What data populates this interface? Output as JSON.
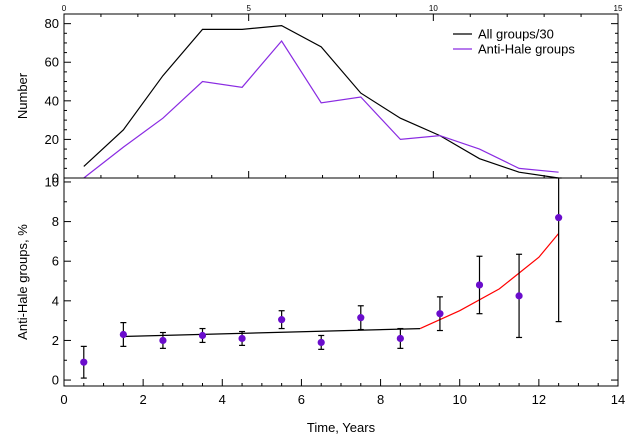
{
  "chart_data": [
    {
      "type": "line",
      "panel": "top",
      "title": "",
      "xlabel": "",
      "ylabel": "Number",
      "xlim": [
        0,
        15
      ],
      "ylim": [
        0,
        85
      ],
      "top_axis_ticks": [
        0,
        5,
        10,
        15
      ],
      "y_ticks": [
        0,
        20,
        40,
        60,
        80
      ],
      "grid": false,
      "legend_position": "top-right",
      "series": [
        {
          "name": "All groups/30",
          "color": "#000000",
          "x": [
            0.5,
            1.5,
            2.5,
            3.5,
            4.5,
            5.5,
            6.5,
            7.5,
            8.5,
            9.5,
            10.5,
            11.5,
            12.5
          ],
          "y": [
            6,
            25,
            53,
            77,
            77,
            79,
            68,
            44,
            31,
            22,
            10,
            3,
            0
          ]
        },
        {
          "name": "Anti-Hale groups",
          "color": "#8a2be2",
          "x": [
            0.5,
            1.5,
            2.5,
            3.5,
            4.5,
            5.5,
            6.5,
            7.5,
            8.5,
            9.5,
            10.5,
            11.5,
            12.5
          ],
          "y": [
            0,
            16,
            31,
            50,
            47,
            71,
            39,
            42,
            20,
            22,
            15,
            5,
            3
          ]
        }
      ]
    },
    {
      "type": "scatter",
      "panel": "bottom",
      "title": "",
      "xlabel": "Time, Years",
      "ylabel": "Anti-Hale groups, %",
      "xlim": [
        0,
        14
      ],
      "ylim": [
        -0.3,
        10.2
      ],
      "x_ticks": [
        0,
        2,
        4,
        6,
        8,
        10,
        12,
        14
      ],
      "y_ticks": [
        0,
        2,
        4,
        6,
        8,
        10
      ],
      "grid": false,
      "points": {
        "color": "#6a0dcc",
        "x": [
          0.5,
          1.5,
          2.5,
          3.5,
          4.5,
          5.5,
          6.5,
          7.5,
          8.5,
          9.5,
          10.5,
          11.5,
          12.5
        ],
        "y": [
          0.9,
          2.3,
          2.0,
          2.25,
          2.1,
          3.05,
          1.9,
          3.15,
          2.1,
          3.35,
          4.8,
          4.25,
          8.2
        ],
        "err": [
          0.8,
          0.6,
          0.4,
          0.35,
          0.35,
          0.45,
          0.35,
          0.6,
          0.5,
          0.85,
          1.45,
          2.1,
          5.25
        ]
      },
      "fits": [
        {
          "color": "#000000",
          "x": [
            1.5,
            9.0
          ],
          "y": [
            2.2,
            2.6
          ]
        },
        {
          "color": "#ff0000",
          "x": [
            9.0,
            10.0,
            11.0,
            12.0,
            12.5
          ],
          "y": [
            2.6,
            3.5,
            4.6,
            6.2,
            7.4
          ]
        }
      ]
    }
  ]
}
